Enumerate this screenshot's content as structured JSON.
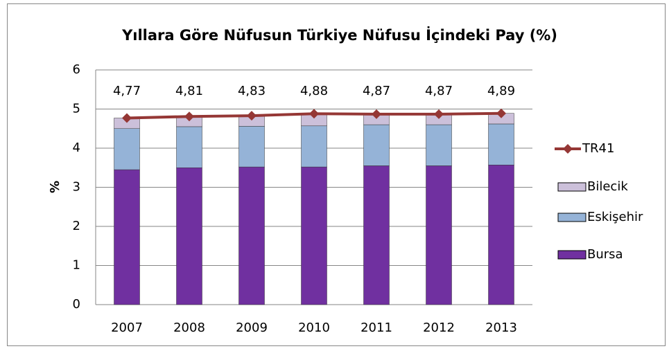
{
  "chart_data": {
    "type": "bar",
    "stacked": true,
    "title": "Yıllara Göre Nüfusun Türkiye Nüfusu  İçindeki Pay (%)",
    "y_label": "%",
    "categories": [
      "2007",
      "2008",
      "2009",
      "2010",
      "2011",
      "2012",
      "2013"
    ],
    "series": [
      {
        "name": "Bursa",
        "color": "#7030a0",
        "values": [
          3.45,
          3.5,
          3.52,
          3.52,
          3.55,
          3.55,
          3.57
        ]
      },
      {
        "name": "Eskişehir",
        "color": "#95b3d7",
        "values": [
          1.05,
          1.05,
          1.04,
          1.05,
          1.05,
          1.05,
          1.05
        ]
      },
      {
        "name": "Bilecik",
        "color": "#ccc0da",
        "values": [
          0.27,
          0.26,
          0.27,
          0.31,
          0.27,
          0.27,
          0.27
        ]
      },
      {
        "name": "TR41",
        "color": "#953735",
        "type": "line",
        "values": [
          4.77,
          4.81,
          4.83,
          4.88,
          4.87,
          4.87,
          4.89
        ],
        "value_labels": [
          "4,77",
          "4,81",
          "4,83",
          "4,88",
          "4,87",
          "4,87",
          "4,89"
        ]
      }
    ],
    "ylim": [
      0,
      6
    ],
    "yticks": [
      0,
      1,
      2,
      3,
      4,
      5,
      6
    ],
    "grid": true,
    "legend": "right"
  }
}
